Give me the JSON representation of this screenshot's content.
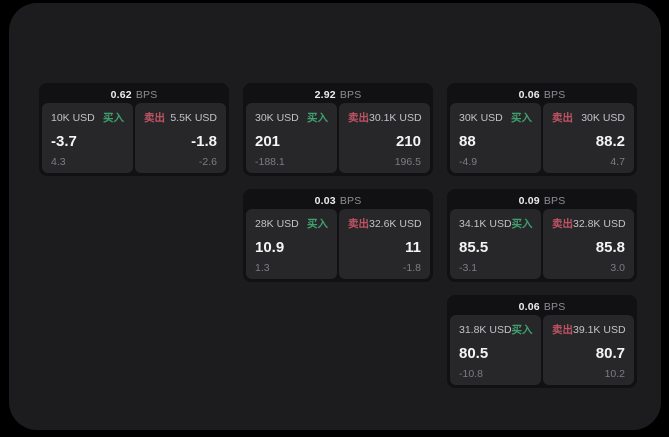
{
  "labels": {
    "bps_unit": "BPS",
    "buy": "买入",
    "sell": "卖出"
  },
  "colors": {
    "backdrop": "#000000",
    "window": "#1c1c1e",
    "card": "#111113",
    "tile": "#27272a",
    "buy_accent": "#3fa06e",
    "sell_accent": "#bf5363",
    "primary_text": "#f4f4f5",
    "muted_text": "#7c7c82"
  },
  "cards": [
    {
      "bps": "0.62",
      "buy": {
        "amount": "10K USD",
        "value": "-3.7",
        "delta": "4.3"
      },
      "sell": {
        "amount": "5.5K USD",
        "value": "-1.8",
        "delta": "-2.6"
      }
    },
    {
      "bps": "2.92",
      "buy": {
        "amount": "30K USD",
        "value": "201",
        "delta": "-188.1"
      },
      "sell": {
        "amount": "30.1K USD",
        "value": "210",
        "delta": "196.5"
      }
    },
    {
      "bps": "0.06",
      "buy": {
        "amount": "30K USD",
        "value": "88",
        "delta": "-4.9"
      },
      "sell": {
        "amount": "30K USD",
        "value": "88.2",
        "delta": "4.7"
      }
    },
    {
      "bps": "0.03",
      "buy": {
        "amount": "28K USD",
        "value": "10.9",
        "delta": "1.3"
      },
      "sell": {
        "amount": "32.6K USD",
        "value": "11",
        "delta": "-1.8"
      }
    },
    {
      "bps": "0.09",
      "buy": {
        "amount": "34.1K USD",
        "value": "85.5",
        "delta": "-3.1"
      },
      "sell": {
        "amount": "32.8K USD",
        "value": "85.8",
        "delta": "3.0"
      }
    },
    {
      "bps": "0.06",
      "buy": {
        "amount": "31.8K USD",
        "value": "80.5",
        "delta": "-10.8"
      },
      "sell": {
        "amount": "39.1K USD",
        "value": "80.7",
        "delta": "10.2"
      }
    }
  ]
}
